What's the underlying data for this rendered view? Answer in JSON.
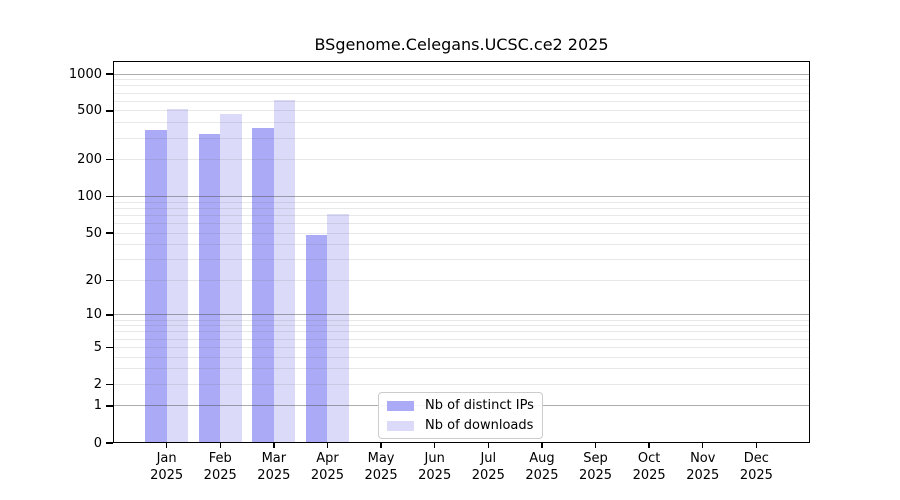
{
  "page": {
    "background": "#ffffff"
  },
  "chart_data": {
    "type": "bar",
    "title": "BSgenome.Celegans.UCSC.ce2 2025",
    "categories": [
      "Jan",
      "Feb",
      "Mar",
      "Apr",
      "May",
      "Jun",
      "Jul",
      "Aug",
      "Sep",
      "Oct",
      "Nov",
      "Dec"
    ],
    "category_sublabel": "2025",
    "series": [
      {
        "name": "Nb of distinct IPs",
        "color": "#aaaaf7",
        "values": [
          350,
          325,
          365,
          48,
          null,
          null,
          null,
          null,
          null,
          null,
          null,
          null
        ]
      },
      {
        "name": "Nb of downloads",
        "color": "#dbdbf9",
        "values": [
          515,
          475,
          615,
          72,
          null,
          null,
          null,
          null,
          null,
          null,
          null,
          null
        ]
      }
    ],
    "xlabel": "",
    "ylabel": "",
    "y_scale": "log1p",
    "ylim": [
      0,
      1276
    ],
    "y_ticks": [
      0,
      1,
      2,
      5,
      10,
      20,
      50,
      100,
      200,
      500,
      1000
    ],
    "grid": true,
    "grid_major": [
      1,
      10,
      100,
      1000
    ],
    "grid_minor": [
      2,
      3,
      4,
      5,
      6,
      7,
      8,
      9,
      20,
      30,
      40,
      50,
      60,
      70,
      80,
      90,
      200,
      300,
      400,
      500,
      600,
      700,
      800,
      900
    ],
    "legend_position": "inside-bottom-center",
    "axis_color": "#000000",
    "grid_minor_color": "#ececec",
    "grid_major_color": "#aaaaaa",
    "legend_border_color": "#cccccc"
  }
}
